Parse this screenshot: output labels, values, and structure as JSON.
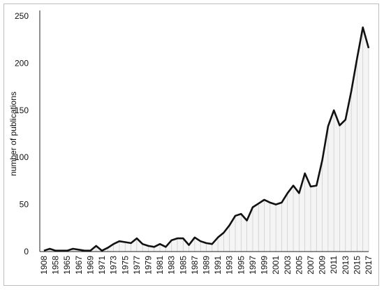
{
  "chart_data": {
    "type": "area",
    "ylabel": "number of publications",
    "xlabel": "",
    "ylim": [
      0,
      250
    ],
    "yticks": [
      0,
      50,
      100,
      150,
      200,
      250
    ],
    "grid": false,
    "x_tick_labels": [
      "1908",
      "1958",
      "1965",
      "1967",
      "1969",
      "1971",
      "1973",
      "1975",
      "1977",
      "1979",
      "1981",
      "1983",
      "1985",
      "1987",
      "1989",
      "1991",
      "1993",
      "1995",
      "1997",
      "1999",
      "2001",
      "2003",
      "2005",
      "2007",
      "2009",
      "2011",
      "2013",
      "2015",
      "2017"
    ],
    "series": [
      {
        "x": [
          "1908",
          "1910",
          "1958",
          "1960",
          "1965",
          "1966",
          "1967",
          "1968",
          "1969",
          "1970",
          "1971",
          "1972",
          "1973",
          "1974",
          "1975",
          "1976",
          "1977",
          "1978",
          "1979",
          "1980",
          "1981",
          "1982",
          "1983",
          "1984",
          "1985",
          "1986",
          "1987",
          "1988",
          "1989",
          "1990",
          "1991",
          "1992",
          "1993",
          "1994",
          "1995",
          "1996",
          "1997",
          "1998",
          "1999",
          "2000",
          "2001",
          "2002",
          "2003",
          "2004",
          "2005",
          "2006",
          "2007",
          "2008",
          "2009",
          "2010",
          "2011",
          "2012",
          "2013",
          "2014",
          "2015",
          "2016",
          "2017"
        ],
        "values": [
          1,
          3,
          1,
          1,
          1,
          3,
          2,
          1,
          1,
          6,
          1,
          4,
          8,
          11,
          10,
          9,
          14,
          8,
          6,
          5,
          8,
          5,
          12,
          14,
          14,
          7,
          15,
          11,
          9,
          8,
          15,
          20,
          28,
          38,
          40,
          33,
          47,
          51,
          55,
          52,
          50,
          52,
          62,
          70,
          62,
          83,
          69,
          70,
          97,
          133,
          150,
          134,
          140,
          170,
          205,
          238,
          216
        ]
      }
    ]
  }
}
